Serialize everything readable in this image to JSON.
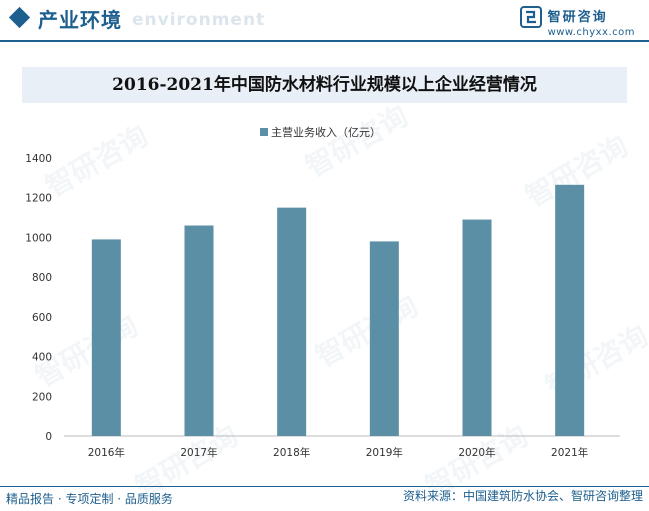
{
  "header": {
    "title": "产业环境",
    "subtitle": "environment",
    "brand_name": "智研咨询",
    "brand_url": "www.chyxx.com"
  },
  "watermark": "智研咨询",
  "colors": {
    "accent": "#1d5f8e",
    "bar": "#5b8fa6",
    "band": "#e8eff6"
  },
  "chart_data": {
    "type": "bar",
    "title": "2016-2021年中国防水材料行业规模以上企业经营情况",
    "categories": [
      "2016年",
      "2017年",
      "2018年",
      "2019年",
      "2020年",
      "2021年"
    ],
    "series": [
      {
        "name": "主营业务收入（亿元）",
        "values": [
          990,
          1060,
          1150,
          980,
          1090,
          1265
        ]
      }
    ],
    "ylim": [
      0,
      1400
    ],
    "yticks": [
      "0",
      "200",
      "400",
      "600",
      "800",
      "1000",
      "1200",
      "1400"
    ],
    "grid": false,
    "legend": "top"
  },
  "footer": {
    "left": "精品报告 · 专项定制 · 品质服务",
    "right": "资料来源：中国建筑防水协会、智研咨询整理"
  }
}
